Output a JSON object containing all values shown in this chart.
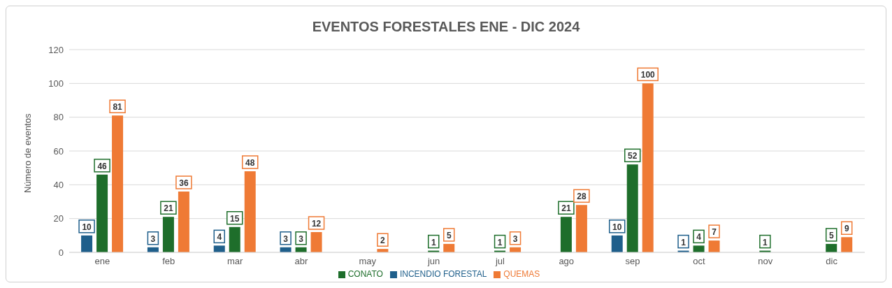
{
  "chart_data": {
    "type": "bar",
    "title": "EVENTOS FORESTALES ENE - DIC 2024",
    "ylabel": "Número de eventos",
    "categories": [
      "ene",
      "feb",
      "mar",
      "abr",
      "may",
      "jun",
      "jul",
      "ago",
      "sep",
      "oct",
      "nov",
      "dic"
    ],
    "series": [
      {
        "name": "INCENDIO FORESTAL",
        "color": "#1f5f8b",
        "values": [
          10,
          3,
          4,
          3,
          null,
          null,
          null,
          null,
          10,
          1,
          null,
          null
        ]
      },
      {
        "name": "CONATO",
        "color": "#1e6e2b",
        "values": [
          46,
          21,
          15,
          3,
          null,
          1,
          1,
          21,
          52,
          4,
          1,
          5
        ]
      },
      {
        "name": "QUEMAS",
        "color": "#ef7a35",
        "values": [
          81,
          36,
          48,
          12,
          2,
          5,
          3,
          28,
          100,
          7,
          null,
          9
        ]
      }
    ],
    "ylim": [
      0,
      120
    ],
    "yticks": [
      0,
      20,
      40,
      60,
      80,
      100,
      120
    ],
    "grid": "y",
    "legend": "bottom",
    "data_labels": true
  }
}
